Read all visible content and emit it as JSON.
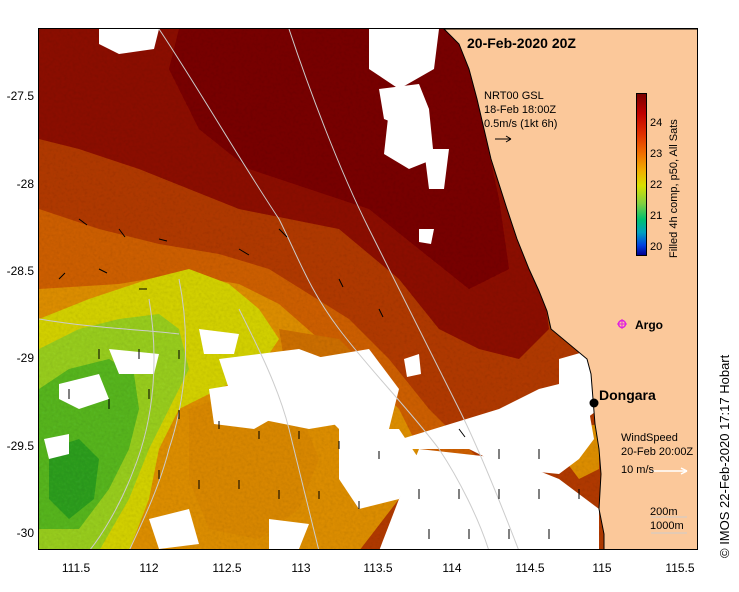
{
  "title": "20-Feb-2020 20Z",
  "axes": {
    "lat_ticks": [
      "-27.5",
      "-28",
      "-28.5",
      "-29",
      "-29.5",
      "-30"
    ],
    "lon_ticks": [
      "111.5",
      "112",
      "112.5",
      "113",
      "113.5",
      "114",
      "114.5",
      "115",
      "115.5"
    ]
  },
  "current_legend": {
    "line1": "NRT00 GSL",
    "line2": "18-Feb 18:00Z",
    "line3": "0.5m/s (1kt 6h)"
  },
  "colorbar": {
    "ticks": [
      "24",
      "23",
      "22",
      "21",
      "20"
    ],
    "label": "Filled 4h comp, p50, All Sats"
  },
  "places": {
    "dongara": "Dongara",
    "argo": "Argo"
  },
  "wind_legend": {
    "line1": "WindSpeed",
    "line2": "20-Feb 20:00Z",
    "line3": "10 m/s"
  },
  "bathymetry_legend": {
    "line1": "200m",
    "line2": "1000m"
  },
  "credit": "© IMOS 22-Feb-2020 17:17 Hobart",
  "colors": {
    "land": "#fbc89a",
    "sst_hot": "#8e0a00",
    "sst_warm": "#c84a00",
    "sst_mid": "#e08a00",
    "sst_cool": "#d8d000",
    "sst_cold": "#70c020"
  }
}
